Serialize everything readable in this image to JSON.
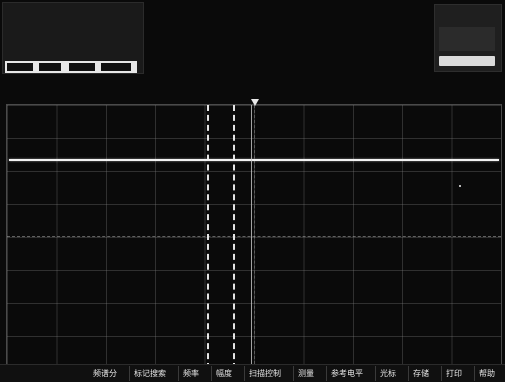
{
  "header": {
    "top_text": "",
    "top_right_text": "",
    "readout": [
      "",
      "",
      ""
    ],
    "right_small_text": ""
  },
  "grid_axis_labels": [
    "",
    "",
    "",
    "",
    "",
    ""
  ],
  "menu": {
    "items": [
      {
        "label": "频谱分"
      },
      {
        "label": "标记搜索"
      },
      {
        "label": "频率"
      },
      {
        "label": "幅度"
      },
      {
        "label": "扫描控制"
      },
      {
        "label": "测量"
      },
      {
        "label": "参考电平"
      },
      {
        "label": "光标"
      },
      {
        "label": "存储"
      },
      {
        "label": "打印"
      },
      {
        "label": "帮助"
      }
    ]
  },
  "colors": {
    "background": "#0a0a0a",
    "trace": "#f2f2f2",
    "grid": "#787878"
  }
}
